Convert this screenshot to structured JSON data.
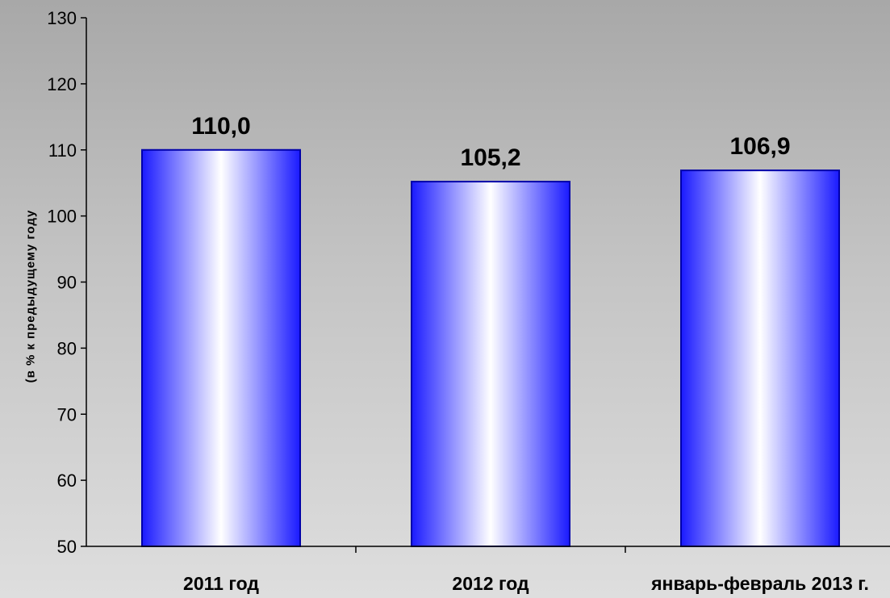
{
  "chart_data": {
    "type": "bar",
    "categories": [
      "2011 год",
      "2012 год",
      "январь-февраль 2013 г."
    ],
    "values": [
      110.0,
      105.2,
      106.9
    ],
    "value_labels": [
      "110,0",
      "105,2",
      "106,9"
    ],
    "ylabel": "(в % к предыдущему  году",
    "ylim": [
      50,
      130
    ],
    "yticks": [
      50,
      60,
      70,
      80,
      90,
      100,
      110,
      120,
      130
    ],
    "grid": false,
    "legend": "none",
    "bar_fill_gradient": [
      "#1a1aff",
      "#ffffff",
      "#1a1aff"
    ],
    "bar_outline_color": "#0000aa"
  }
}
